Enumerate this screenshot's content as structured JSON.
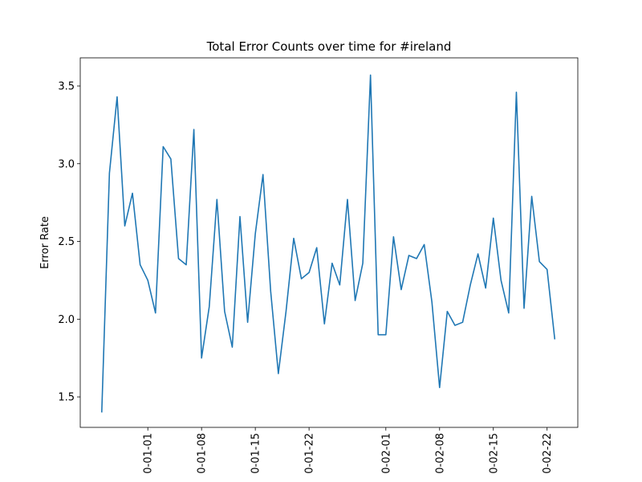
{
  "chart_data": {
    "type": "line",
    "title": "Total Error Counts over time for #ireland",
    "ylabel": "Error Rate",
    "x": [
      -6,
      -5,
      -4,
      -3,
      -2,
      -1,
      0,
      1,
      2,
      3,
      4,
      5,
      6,
      7,
      8,
      9,
      10,
      11,
      12,
      13,
      14,
      15,
      16,
      17,
      18,
      19,
      20,
      21,
      22,
      23,
      24,
      25,
      26,
      27,
      28,
      29,
      30,
      31,
      32,
      33,
      34,
      35,
      36,
      37,
      38,
      39,
      40,
      41,
      42,
      43,
      44,
      45,
      46,
      47,
      48,
      49,
      50,
      51,
      52,
      53
    ],
    "series": [
      {
        "color": "#1f77b4",
        "values": [
          1.4,
          2.94,
          3.43,
          2.6,
          2.81,
          2.35,
          2.25,
          2.04,
          3.11,
          3.03,
          2.39,
          2.35,
          3.22,
          1.75,
          2.08,
          2.77,
          2.05,
          1.82,
          2.66,
          1.98,
          2.55,
          2.93,
          2.18,
          1.65,
          2.05,
          2.52,
          2.26,
          2.3,
          2.46,
          1.97,
          2.36,
          2.22,
          2.77,
          2.12,
          2.36,
          3.57,
          1.9,
          1.9,
          2.53,
          2.19,
          2.41,
          2.39,
          2.48,
          2.11,
          1.56,
          2.05,
          1.96,
          1.98,
          2.22,
          2.42,
          2.2,
          2.65,
          2.25,
          2.04,
          3.46,
          2.07,
          2.79,
          2.37,
          2.32,
          1.87
        ]
      }
    ],
    "xlim": [
      -8.8,
      56
    ],
    "xticks": [
      {
        "value": 0,
        "label": "0-01-01"
      },
      {
        "value": 7,
        "label": "0-01-08"
      },
      {
        "value": 14,
        "label": "0-01-15"
      },
      {
        "value": 21,
        "label": "0-01-22"
      },
      {
        "value": 31,
        "label": "0-02-01"
      },
      {
        "value": 38,
        "label": "0-02-08"
      },
      {
        "value": 45,
        "label": "0-02-15"
      },
      {
        "value": 52,
        "label": "0-02-22"
      }
    ],
    "ylim": [
      1.304,
      3.681
    ],
    "yticks": [
      1.5,
      {
        "value": 2,
        "label": "2.0"
      },
      2.5,
      {
        "value": 3,
        "label": "3.0"
      },
      3.5
    ],
    "grid": false
  }
}
